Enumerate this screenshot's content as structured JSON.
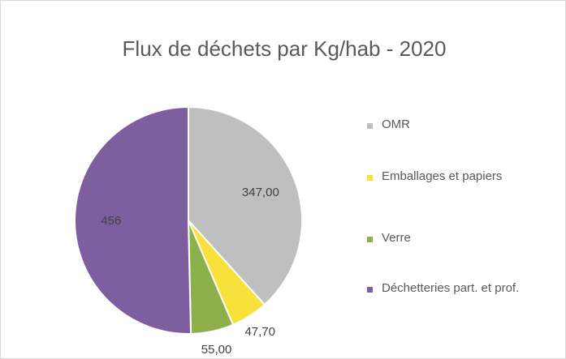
{
  "chart_data": {
    "type": "pie",
    "title": "Flux de déchets par Kg/hab - 2020",
    "categories": [
      "OMR",
      "Emballages et papiers",
      "Verre",
      "Déchetteries part. et prof."
    ],
    "values": [
      347,
      47.7,
      55,
      456
    ],
    "value_labels": [
      "347,00",
      "47,70",
      "55,00",
      "456"
    ],
    "colors": [
      "#bfbfbf",
      "#f7e13a",
      "#8db04a",
      "#7d5fa0"
    ],
    "legend": "right"
  }
}
